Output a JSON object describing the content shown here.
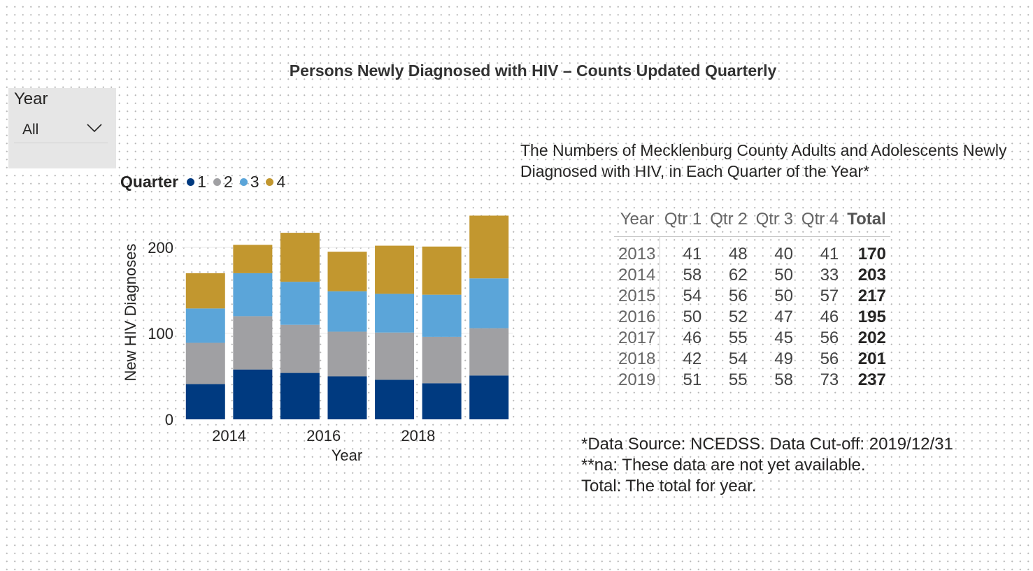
{
  "title": "Persons Newly Diagnosed with HIV – Counts Updated Quarterly",
  "slicer": {
    "label": "Year",
    "value": "All",
    "icon": "chevron-down-icon"
  },
  "legend": {
    "title": "Quarter",
    "items": [
      {
        "label": "1",
        "color": "#003A80"
      },
      {
        "label": "2",
        "color": "#A0A0A3"
      },
      {
        "label": "3",
        "color": "#5BA5D9"
      },
      {
        "label": "4",
        "color": "#C2972F"
      }
    ]
  },
  "chart_data": {
    "type": "bar",
    "stacked": true,
    "categories": [
      "2013",
      "2014",
      "2015",
      "2016",
      "2017",
      "2018",
      "2019"
    ],
    "x_tick_labels": [
      "2014",
      "2016",
      "2018"
    ],
    "series": [
      {
        "name": "1",
        "values": [
          41,
          58,
          54,
          50,
          46,
          42,
          51
        ]
      },
      {
        "name": "2",
        "values": [
          48,
          62,
          56,
          52,
          55,
          54,
          55
        ]
      },
      {
        "name": "3",
        "values": [
          40,
          50,
          50,
          47,
          45,
          49,
          58
        ]
      },
      {
        "name": "4",
        "values": [
          41,
          33,
          57,
          46,
          56,
          56,
          73
        ]
      }
    ],
    "xlabel": "Year",
    "ylabel": "New HIV Diagnoses",
    "yticks": [
      0,
      100,
      200
    ],
    "ylim": [
      0,
      240
    ],
    "grid": true
  },
  "subtitle": "The Numbers of Mecklenburg County Adults and Adolescents Newly Diagnosed with HIV, in Each Quarter of the Year*",
  "table": {
    "headers": [
      "Year",
      "Qtr 1",
      "Qtr 2",
      "Qtr 3",
      "Qtr 4",
      "Total"
    ],
    "rows": [
      [
        "2013",
        "41",
        "48",
        "40",
        "41",
        "170"
      ],
      [
        "2014",
        "58",
        "62",
        "50",
        "33",
        "203"
      ],
      [
        "2015",
        "54",
        "56",
        "50",
        "57",
        "217"
      ],
      [
        "2016",
        "50",
        "52",
        "47",
        "46",
        "195"
      ],
      [
        "2017",
        "46",
        "55",
        "45",
        "56",
        "202"
      ],
      [
        "2018",
        "42",
        "54",
        "49",
        "56",
        "201"
      ],
      [
        "2019",
        "51",
        "55",
        "58",
        "73",
        "237"
      ]
    ]
  },
  "notes": {
    "line1": "*Data Source: NCEDSS. Data Cut-off: 2019/12/31",
    "line2": "**na: These data are not yet available.",
    "line3": "Total: The total for year."
  }
}
